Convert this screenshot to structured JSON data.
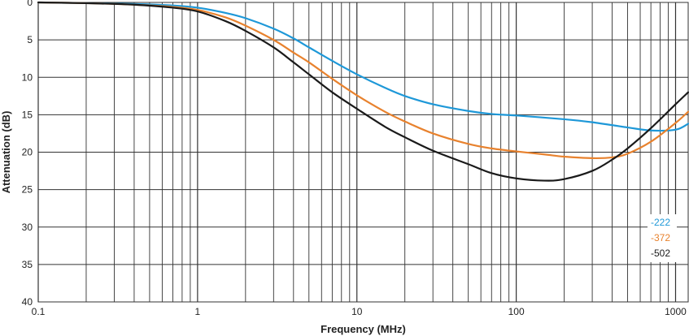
{
  "chart_data": {
    "type": "line",
    "xlabel": "Frequency (MHz)",
    "ylabel": "Attenuation (dB)",
    "x_scale": "log",
    "xlim": [
      0.1,
      1200
    ],
    "ylim": [
      0,
      40
    ],
    "y_inverted": true,
    "x_ticks": [
      0.1,
      1,
      10,
      100,
      1000
    ],
    "x_tick_labels": [
      "0.1",
      "1",
      "10",
      "100",
      "1000"
    ],
    "y_ticks": [
      0,
      5,
      10,
      15,
      20,
      25,
      30,
      35,
      40
    ],
    "y_tick_labels": [
      "0",
      "5",
      "10",
      "15",
      "20",
      "25",
      "30",
      "35",
      "40"
    ],
    "grid": true,
    "legend_position": "bottom-right",
    "series": [
      {
        "name": "-222",
        "color": "#1e98d8",
        "x": [
          0.1,
          0.2,
          0.4,
          0.7,
          1,
          1.5,
          2,
          3,
          4,
          5,
          7,
          10,
          15,
          20,
          30,
          50,
          70,
          100,
          200,
          300,
          500,
          700,
          1000,
          1200
        ],
        "y": [
          0,
          0.1,
          0.2,
          0.4,
          0.7,
          1.4,
          2.1,
          3.5,
          4.8,
          6.0,
          7.8,
          9.6,
          11.4,
          12.5,
          13.6,
          14.5,
          14.9,
          15.1,
          15.6,
          16.0,
          16.7,
          17.1,
          17.0,
          16.2
        ]
      },
      {
        "name": "-372",
        "color": "#e8822e",
        "x": [
          0.1,
          0.2,
          0.4,
          0.7,
          1,
          1.5,
          2,
          3,
          4,
          5,
          7,
          10,
          15,
          20,
          30,
          50,
          70,
          100,
          150,
          200,
          300,
          400,
          500,
          700,
          1000,
          1200
        ],
        "y": [
          0,
          0.1,
          0.3,
          0.6,
          1.0,
          2.0,
          3.1,
          5.0,
          6.7,
          8.0,
          10.2,
          12.4,
          14.6,
          15.9,
          17.5,
          18.9,
          19.5,
          19.9,
          20.3,
          20.6,
          20.8,
          20.7,
          20.2,
          18.6,
          16.1,
          14.6
        ]
      },
      {
        "name": "-502",
        "color": "#1a1a1a",
        "x": [
          0.1,
          0.2,
          0.4,
          0.7,
          1,
          1.5,
          2,
          3,
          4,
          5,
          7,
          10,
          15,
          20,
          30,
          50,
          70,
          100,
          150,
          200,
          300,
          400,
          500,
          700,
          1000,
          1200
        ],
        "y": [
          0,
          0.1,
          0.3,
          0.7,
          1.2,
          2.5,
          3.8,
          6.0,
          8.0,
          9.6,
          12.0,
          14.2,
          16.6,
          18.0,
          19.8,
          21.6,
          22.8,
          23.5,
          23.8,
          23.6,
          22.5,
          21.0,
          19.5,
          16.8,
          13.6,
          12.0
        ]
      }
    ]
  }
}
